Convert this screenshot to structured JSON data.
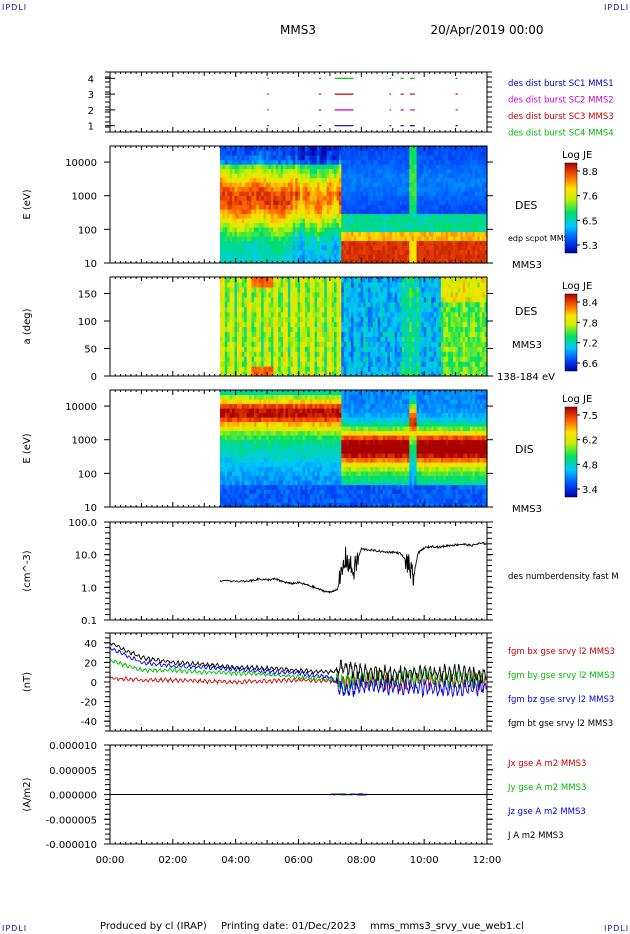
{
  "corner_label": "IPDLI",
  "header": {
    "spacecraft": "MMS3",
    "datetime": "20/Apr/2019 00:00"
  },
  "footer": {
    "produced_by": "Produced by cl (IRAP)",
    "printing_date": "Printing date: 01/Dec/2023",
    "filename": "mms_mms3_srvy_vue_web1.cl"
  },
  "colors": {
    "mms1": "#0000cc",
    "mms2": "#cc00cc",
    "mms3": "#cc0000",
    "mms4": "#00bb00",
    "bx": "#cc0000",
    "by": "#00bb00",
    "bz": "#0000ee",
    "bt": "#000000"
  },
  "time_axis": {
    "start_hour": 0,
    "end_hour": 12,
    "ticks": [
      "00:00",
      "02:00",
      "04:00",
      "06:00",
      "08:00",
      "10:00",
      "12:00"
    ]
  },
  "chart_data": [
    {
      "type": "scatter",
      "panel": "burst",
      "yticks": [
        "1",
        "2",
        "3",
        "4"
      ],
      "ylim": [
        0.6,
        4.4
      ],
      "legend": [
        "des dist burst SC1 MMS1",
        "des dist burst SC2 MMS2",
        "des dist burst SC3 MMS3",
        "des dist burst SC4 MMS4"
      ],
      "intervals": [
        [
          5.0,
          5.05
        ],
        [
          6.65,
          6.72
        ],
        [
          7.15,
          7.75
        ],
        [
          8.9,
          8.95
        ],
        [
          9.25,
          9.35
        ],
        [
          9.55,
          9.7
        ],
        [
          11.0,
          11.07
        ]
      ]
    },
    {
      "type": "heatmap",
      "panel": "des_energy",
      "ylabel": "E (eV)",
      "ylim": [
        10,
        30000
      ],
      "yticks": [
        "10",
        "100",
        "1000",
        "10000"
      ],
      "data_start_hour": 3.5,
      "right_labels": [
        "DES",
        "edp scpot MMS3",
        "MMS3"
      ],
      "colorbar": {
        "title": "Log JE",
        "ticks": [
          "8.8",
          "7.6",
          "6.5",
          "5.3"
        ],
        "range": [
          5.3,
          8.8
        ]
      }
    },
    {
      "type": "heatmap",
      "panel": "des_pitch",
      "ylabel": "a (deg)",
      "ylim": [
        0,
        180
      ],
      "yticks": [
        "0",
        "50",
        "100",
        "150"
      ],
      "data_start_hour": 3.5,
      "right_labels": [
        "DES",
        "MMS3",
        "138-184 eV"
      ],
      "colorbar": {
        "title": "Log JE",
        "ticks": [
          "8.4",
          "7.8",
          "7.2",
          "6.6"
        ],
        "range": [
          6.6,
          8.4
        ]
      }
    },
    {
      "type": "heatmap",
      "panel": "dis_energy",
      "ylabel": "E (eV)",
      "ylim": [
        10,
        30000
      ],
      "yticks": [
        "10",
        "100",
        "1000",
        "10000"
      ],
      "data_start_hour": 3.5,
      "right_labels": [
        "DIS",
        "MMS3"
      ],
      "colorbar": {
        "title": "Log JE",
        "ticks": [
          "7.5",
          "6.2",
          "4.8",
          "3.4"
        ],
        "range": [
          3.4,
          7.5
        ]
      }
    },
    {
      "type": "line",
      "panel": "density",
      "ylabel": "(cm^-3)",
      "ylim": [
        0.1,
        100
      ],
      "yticks": [
        "0.1",
        "1.0",
        "10.0",
        "100.0"
      ],
      "series": [
        {
          "name": "des numberdensity fast M",
          "x": [
            3.5,
            4.0,
            4.5,
            4.75,
            5.0,
            5.25,
            5.5,
            5.75,
            6.0,
            6.25,
            6.5,
            6.75,
            7.0,
            7.25,
            7.5,
            7.75,
            8.0,
            8.25,
            8.5,
            8.75,
            9.0,
            9.25,
            9.5,
            9.65,
            9.8,
            10.0,
            10.25,
            10.5,
            10.75,
            11.0,
            11.25,
            11.5,
            11.75,
            12.0
          ],
          "y": [
            1.6,
            1.5,
            1.6,
            1.8,
            1.7,
            1.8,
            1.5,
            1.3,
            1.4,
            1.2,
            1.0,
            0.8,
            0.7,
            0.9,
            8,
            3,
            15,
            14,
            13,
            12,
            12,
            11,
            5,
            1.8,
            11,
            16,
            18,
            17,
            19,
            20,
            21,
            19,
            22,
            22
          ]
        }
      ]
    },
    {
      "type": "line",
      "panel": "fgm",
      "ylabel": "(nT)",
      "ylim": [
        -50,
        50
      ],
      "yticks": [
        "-40",
        "-20",
        "0",
        "20",
        "40"
      ],
      "series": [
        {
          "name": "fgm bx gse srvy l2 MMS3",
          "x": [
            0,
            1,
            2,
            3,
            4,
            5,
            6,
            7,
            7.5,
            8,
            9,
            10,
            11,
            12
          ],
          "y": [
            4,
            2,
            2,
            1,
            0,
            1,
            2,
            1,
            0,
            2,
            0,
            1,
            0,
            0
          ]
        },
        {
          "name": "fgm by gse srvy l2 MMS3",
          "x": [
            0,
            1,
            2,
            3,
            4,
            5,
            6,
            7,
            7.5,
            8,
            9,
            10,
            11,
            12
          ],
          "y": [
            22,
            12,
            12,
            10,
            9,
            8,
            5,
            3,
            0,
            3,
            2,
            5,
            3,
            3
          ]
        },
        {
          "name": "fgm bz gse srvy l2 MMS3",
          "x": [
            0,
            1,
            2,
            3,
            4,
            5,
            6,
            7,
            7.5,
            8,
            9,
            10,
            11,
            12
          ],
          "y": [
            35,
            20,
            16,
            15,
            13,
            11,
            9,
            5,
            -10,
            -3,
            -5,
            -6,
            -7,
            -5
          ]
        },
        {
          "name": "fgm bt gse srvy l2 MMS3",
          "x": [
            0,
            1,
            2,
            3,
            4,
            5,
            6,
            7,
            7.5,
            8,
            9,
            10,
            11,
            12
          ],
          "y": [
            40,
            25,
            20,
            18,
            15,
            14,
            12,
            10,
            15,
            10,
            8,
            9,
            10,
            6
          ]
        }
      ]
    },
    {
      "type": "line",
      "panel": "current",
      "ylabel": "(A/m2)",
      "ylim": [
        -0.0001,
        0.0001
      ],
      "yticks": [
        "-0.000010",
        "-0.000005",
        "0.000000",
        "0.000005",
        "0.000010"
      ],
      "series": [
        {
          "name": "Jx gse A m2 MMS3",
          "x": [
            0,
            12
          ],
          "y": [
            0,
            0
          ]
        },
        {
          "name": "Jy gse A m2 MMS3",
          "x": [
            0,
            12
          ],
          "y": [
            0,
            0
          ]
        },
        {
          "name": "Jz gse A m2 MMS3",
          "x": [
            0,
            12
          ],
          "y": [
            0,
            0
          ]
        },
        {
          "name": "J A m2 MMS3",
          "x": [
            0,
            12
          ],
          "y": [
            0,
            0
          ]
        }
      ]
    }
  ]
}
